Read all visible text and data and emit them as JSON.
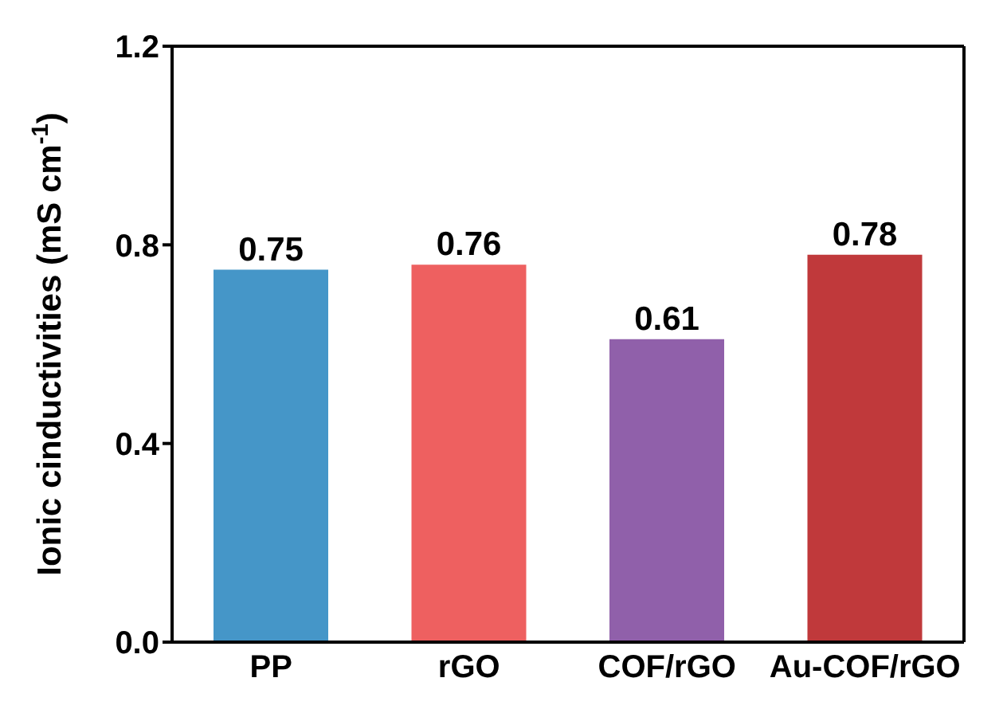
{
  "chart_data": {
    "type": "bar",
    "ylabel": "Ionic cinductivities (mS cm$^{-1}$)",
    "categories": [
      "PP",
      "rGO",
      "COF/rGO",
      "Au-COF/rGO"
    ],
    "values": [
      0.75,
      0.76,
      0.61,
      0.78
    ],
    "colors": [
      "#4596c8",
      "#ee6060",
      "#9060aa",
      "#c0393b"
    ],
    "ylim": [
      0,
      1.2
    ],
    "yticks": [
      {
        "value": 0,
        "label": "0.0"
      },
      0.4,
      0.8,
      {
        "value": 1.2,
        "label": "1.2"
      }
    ],
    "data_labels": true
  }
}
